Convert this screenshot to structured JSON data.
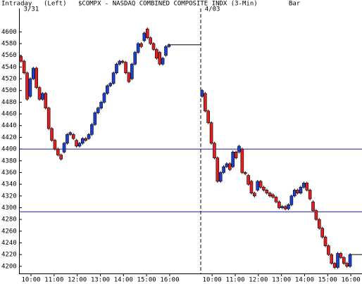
{
  "header": {
    "mode": "Intraday",
    "axis_side": "(Left)",
    "symbol": "$COMPX - NASDAQ COMBINED COMPOSITE INDX (3-Min)",
    "style": "Bar"
  },
  "chart_data": {
    "type": "candlestick",
    "up_color": "#1f3fd0",
    "down_color": "#e02020",
    "ylim": [
      4189,
      4640
    ],
    "yticks": [
      4200,
      4220,
      4240,
      4260,
      4280,
      4300,
      4320,
      4340,
      4360,
      4380,
      4400,
      4420,
      4440,
      4460,
      4480,
      4500,
      4520,
      4540,
      4560,
      4580,
      4600
    ],
    "xlim": [
      0,
      889
    ],
    "xticks": [
      {
        "value": 30,
        "label": "10:00"
      },
      {
        "value": 90,
        "label": "11:00"
      },
      {
        "value": 150,
        "label": "12:00"
      },
      {
        "value": 210,
        "label": "13:00"
      },
      {
        "value": 270,
        "label": "14:00"
      },
      {
        "value": 330,
        "label": "15:00"
      },
      {
        "value": 390,
        "label": "16:00"
      },
      {
        "value": 500,
        "label": "10:00"
      },
      {
        "value": 560,
        "label": "11:00"
      },
      {
        "value": 620,
        "label": "12:00"
      },
      {
        "value": 680,
        "label": "13:00"
      },
      {
        "value": 740,
        "label": "14:00"
      },
      {
        "value": 800,
        "label": "15:00"
      },
      {
        "value": 860,
        "label": "16:00"
      }
    ],
    "day_labels": [
      {
        "text": "3/31",
        "x": 0
      },
      {
        "text": "4/03",
        "x": 470
      }
    ],
    "reference_lines": [
      4400,
      4293
    ],
    "reference_color": "#1a1aa0",
    "days": [
      {
        "x": [
          4,
          12,
          20,
          28,
          36,
          44,
          52,
          60,
          68,
          76,
          84,
          92,
          100,
          108,
          116,
          124,
          132,
          140,
          148,
          156,
          164,
          172,
          180,
          188,
          196,
          204,
          212,
          220,
          228,
          236,
          244,
          252,
          260,
          268,
          276,
          284,
          292,
          300,
          308,
          316,
          324,
          332,
          340,
          348,
          356,
          364,
          372,
          380,
          388
        ],
        "open": [
          4558,
          4550,
          4530,
          4490,
          4520,
          4538,
          4505,
          4485,
          4495,
          4470,
          4435,
          4415,
          4400,
          4390,
          4395,
          4410,
          4425,
          4425,
          4415,
          4405,
          4410,
          4418,
          4418,
          4425,
          4442,
          4462,
          4470,
          4480,
          4495,
          4508,
          4512,
          4530,
          4545,
          4550,
          4548,
          4530,
          4520,
          4545,
          4565,
          4580,
          4585,
          4605,
          4590,
          4580,
          4570,
          4565,
          4545,
          4560,
          4575
        ],
        "close": [
          4550,
          4530,
          4485,
          4520,
          4538,
          4505,
          4485,
          4495,
          4470,
          4435,
          4415,
          4400,
          4390,
          4383,
          4410,
          4425,
          4428,
          4418,
          4405,
          4410,
          4418,
          4415,
          4425,
          4442,
          4462,
          4470,
          4480,
          4495,
          4508,
          4512,
          4530,
          4545,
          4550,
          4548,
          4530,
          4515,
          4545,
          4565,
          4580,
          4575,
          4598,
          4590,
          4580,
          4570,
          4555,
          4545,
          4555,
          4575,
          4578
        ],
        "end_x": 470
      },
      {
        "x": [
          474,
          482,
          490,
          498,
          506,
          514,
          522,
          530,
          538,
          546,
          554,
          562,
          570,
          578,
          586,
          594,
          602,
          610,
          618,
          626,
          634,
          642,
          650,
          658,
          666,
          674,
          682,
          690,
          698,
          706,
          714,
          722,
          730,
          738,
          746,
          754,
          762,
          770,
          778,
          786,
          794,
          802,
          810,
          818,
          826,
          834,
          842,
          850,
          858
        ],
        "open": [
          4490,
          4495,
          4465,
          4445,
          4410,
          4385,
          4345,
          4360,
          4370,
          4375,
          4370,
          4395,
          4395,
          4400,
          4360,
          4355,
          4345,
          4325,
          4330,
          4345,
          4335,
          4330,
          4325,
          4322,
          4318,
          4310,
          4300,
          4302,
          4298,
          4305,
          4320,
          4330,
          4325,
          4335,
          4342,
          4330,
          4310,
          4295,
          4280,
          4265,
          4250,
          4235,
          4220,
          4205,
          4198,
          4222,
          4215,
          4205,
          4200
        ],
        "close": [
          4500,
          4465,
          4445,
          4410,
          4385,
          4345,
          4360,
          4370,
          4375,
          4365,
          4395,
          4385,
          4405,
          4360,
          4358,
          4340,
          4325,
          4320,
          4345,
          4335,
          4330,
          4325,
          4320,
          4318,
          4310,
          4300,
          4302,
          4298,
          4305,
          4320,
          4330,
          4325,
          4335,
          4342,
          4330,
          4315,
          4295,
          4280,
          4265,
          4250,
          4235,
          4220,
          4205,
          4198,
          4222,
          4215,
          4205,
          4200,
          4220
        ],
        "end_x": 889
      }
    ]
  }
}
